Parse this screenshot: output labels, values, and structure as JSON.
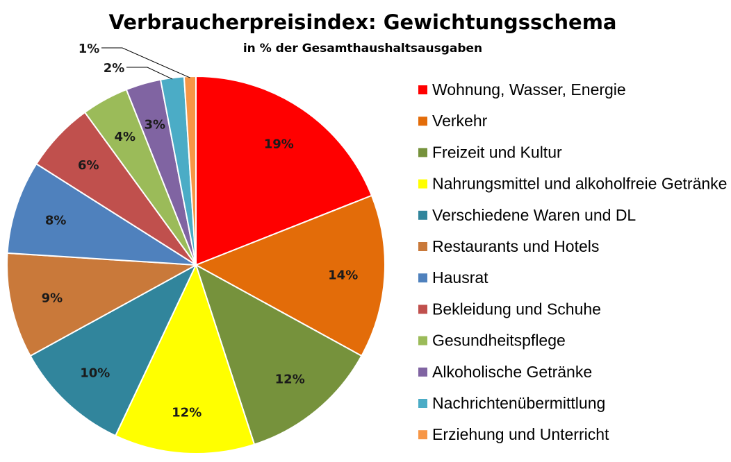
{
  "chart_data": {
    "type": "pie",
    "title": "Verbraucherpreisindex: Gewichtungsschema",
    "subtitle": "in % der Gesamthaushaltsausgaben",
    "legend_position": "right",
    "slices": [
      {
        "name": "Wohnung, Wasser, Energie",
        "value": 19,
        "label": "19%",
        "color": "#ff0000"
      },
      {
        "name": "Verkehr",
        "value": 14,
        "label": "14%",
        "color": "#e36c09"
      },
      {
        "name": "Freizeit und Kultur",
        "value": 12,
        "label": "12%",
        "color": "#76923c"
      },
      {
        "name": "Nahrungsmittel und alkoholfreie Getränke",
        "value": 12,
        "label": "12%",
        "color": "#ffff00"
      },
      {
        "name": "Verschiedene Waren und DL",
        "value": 10,
        "label": "10%",
        "color": "#31859c"
      },
      {
        "name": "Restaurants und Hotels",
        "value": 9,
        "label": "9%",
        "color": "#c9793a"
      },
      {
        "name": "Hausrat",
        "value": 8,
        "label": "8%",
        "color": "#4f81bd"
      },
      {
        "name": "Bekleidung und Schuhe",
        "value": 6,
        "label": "6%",
        "color": "#c0504d"
      },
      {
        "name": "Gesundheitspflege",
        "value": 4,
        "label": "4%",
        "color": "#9bbb59"
      },
      {
        "name": "Alkoholische Getränke",
        "value": 3,
        "label": "3%",
        "color": "#8064a2"
      },
      {
        "name": "Nachrichtenübermittlung",
        "value": 2,
        "label": "2%",
        "color": "#4bacc6"
      },
      {
        "name": "Erziehung und Unterricht",
        "value": 1,
        "label": "1%",
        "color": "#f79646"
      }
    ]
  }
}
